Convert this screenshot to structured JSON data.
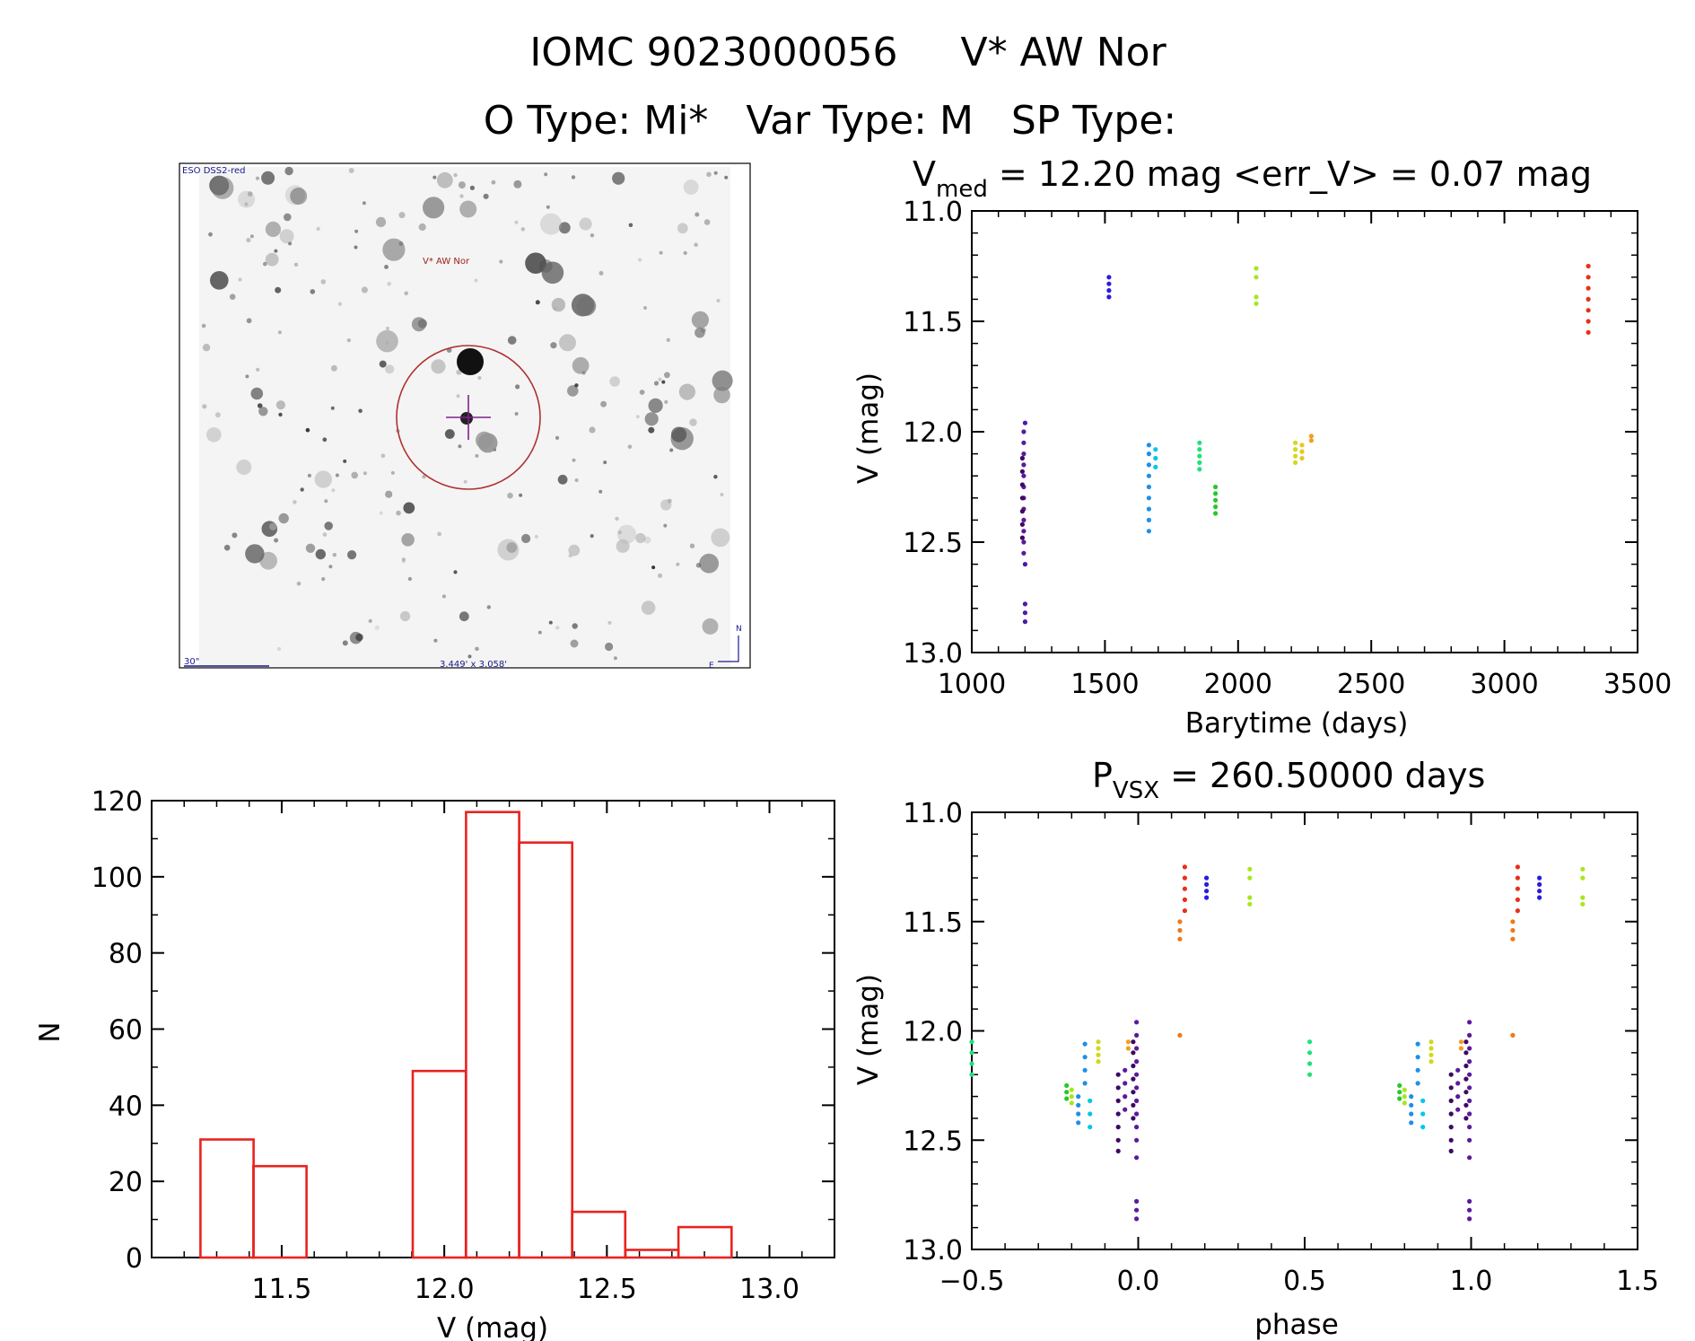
{
  "header": {
    "title": "IOMC 9023000056     V* AW Nor",
    "subtitle": "O Type: Mi*   Var Type: M   SP Type:"
  },
  "finder": {
    "survey_label": "ESO DSS2-red",
    "target_label": "V* AW Nor",
    "scale_label": "30\"",
    "size_label": "3.449' x 3.058'",
    "north": "N",
    "east": "E"
  },
  "colors": {
    "histogram": "#e8231f",
    "axes": "#000000",
    "marker": "#b03030",
    "cross": "#80208c"
  },
  "chart_data": [
    {
      "type": "scatter",
      "id": "lightcurve",
      "title_main": "V",
      "title_sub": "med",
      "title_rest": " = 12.20 mag <err_V> = 0.07 mag",
      "xlabel": "Barytime (days)",
      "ylabel": "V (mag)",
      "xlim": [
        1000,
        3500
      ],
      "ylim": [
        13.0,
        11.0
      ],
      "xticks": [
        "1000",
        "1500",
        "2000",
        "2500",
        "3000",
        "3500"
      ],
      "yticks": [
        "11.0",
        "11.5",
        "12.0",
        "12.5",
        "13.0"
      ],
      "groups": [
        {
          "x": 1195,
          "y": [
            12.0,
            12.05,
            12.1,
            12.15,
            12.2,
            12.25,
            12.3,
            12.35,
            12.4,
            12.45,
            12.5,
            12.55
          ],
          "color": "#5a1a9c"
        },
        {
          "x": 1190,
          "y": [
            12.12,
            12.18,
            12.24,
            12.3,
            12.36,
            12.42,
            12.48
          ],
          "color": "#3c0a62"
        },
        {
          "x": 1200,
          "y": [
            11.96,
            12.6,
            12.78,
            12.82,
            12.86
          ],
          "color": "#4b1aa8"
        },
        {
          "x": 1515,
          "y": [
            11.3,
            11.33,
            11.36,
            11.39
          ],
          "color": "#2a1ce0"
        },
        {
          "x": 1665,
          "y": [
            12.06,
            12.1,
            12.15,
            12.2,
            12.25,
            12.3,
            12.35,
            12.4,
            12.45
          ],
          "color": "#1e90e8"
        },
        {
          "x": 1690,
          "y": [
            12.08,
            12.12,
            12.16
          ],
          "color": "#00c8e8"
        },
        {
          "x": 1855,
          "y": [
            12.05,
            12.08,
            12.11,
            12.14,
            12.17
          ],
          "color": "#22e07a"
        },
        {
          "x": 1915,
          "y": [
            12.25,
            12.28,
            12.31,
            12.34,
            12.37
          ],
          "color": "#28c82a"
        },
        {
          "x": 2068,
          "y": [
            11.26,
            11.3,
            11.39,
            11.42
          ],
          "color": "#a6e81e"
        },
        {
          "x": 2215,
          "y": [
            12.05,
            12.08,
            12.11,
            12.14
          ],
          "color": "#d2d81e"
        },
        {
          "x": 2240,
          "y": [
            12.06,
            12.09,
            12.12
          ],
          "color": "#e8c81e"
        },
        {
          "x": 2275,
          "y": [
            12.02,
            12.04
          ],
          "color": "#f0a020"
        },
        {
          "x": 3315,
          "y": [
            11.25,
            11.3,
            11.35,
            11.4,
            11.45,
            11.5,
            11.55
          ],
          "color": "#e83018"
        }
      ]
    },
    {
      "type": "bar",
      "id": "histogram",
      "xlabel": "V (mag)",
      "ylabel": "N",
      "xlim": [
        11.1,
        13.2
      ],
      "ylim": [
        0,
        120
      ],
      "xticks": [
        "11.5",
        "12.0",
        "12.5",
        "13.0"
      ],
      "yticks": [
        "0",
        "20",
        "40",
        "60",
        "80",
        "100",
        "120"
      ],
      "bins": [
        11.25,
        11.413,
        11.577,
        11.74,
        11.903,
        12.067,
        12.23,
        12.393,
        12.557,
        12.72,
        12.883
      ],
      "bin_width": 0.1633,
      "values": [
        31,
        24,
        0,
        0,
        49,
        117,
        109,
        12,
        2,
        8,
        0
      ]
    },
    {
      "type": "scatter",
      "id": "phased",
      "title_main": "P",
      "title_sub": "VSX",
      "title_rest": " = 260.50000 days",
      "xlabel": "phase",
      "ylabel": "V (mag)",
      "xlim": [
        -0.5,
        1.5
      ],
      "ylim": [
        13.0,
        11.0
      ],
      "xticks": [
        "-0.5",
        "0.0",
        "0.5",
        "1.0",
        "1.5"
      ],
      "yticks": [
        "11.0",
        "11.5",
        "12.0",
        "12.5",
        "13.0"
      ],
      "groups": [
        {
          "x": -0.5,
          "y": [
            12.05,
            12.1,
            12.15,
            12.2
          ],
          "color": "#22e07a"
        },
        {
          "x": -0.215,
          "y": [
            12.25,
            12.28,
            12.31
          ],
          "color": "#28c82a"
        },
        {
          "x": -0.2,
          "y": [
            12.27,
            12.3,
            12.33
          ],
          "color": "#a6e81e"
        },
        {
          "x": -0.18,
          "y": [
            12.3,
            12.34,
            12.38,
            12.42
          ],
          "color": "#1e90e8"
        },
        {
          "x": -0.16,
          "y": [
            12.06,
            12.12,
            12.18,
            12.24
          ],
          "color": "#1e90e8"
        },
        {
          "x": -0.145,
          "y": [
            12.32,
            12.38,
            12.44
          ],
          "color": "#00c8e8"
        },
        {
          "x": -0.12,
          "y": [
            12.05,
            12.08,
            12.11,
            12.14
          ],
          "color": "#d2d81e"
        },
        {
          "x": -0.06,
          "y": [
            12.2,
            12.26,
            12.32,
            12.38,
            12.44,
            12.5,
            12.55
          ],
          "color": "#3c0a62"
        },
        {
          "x": -0.04,
          "y": [
            12.18,
            12.24,
            12.3,
            12.36
          ],
          "color": "#5a1a9c"
        },
        {
          "x": -0.015,
          "y": [
            12.05,
            12.1,
            12.16,
            12.22,
            12.28,
            12.34,
            12.4
          ],
          "color": "#3c0a62"
        },
        {
          "x": -0.005,
          "y": [
            11.96,
            12.02,
            12.08,
            12.14,
            12.2,
            12.26,
            12.32,
            12.38,
            12.44,
            12.5,
            12.58,
            12.78,
            12.82,
            12.86
          ],
          "color": "#5a1a9c"
        },
        {
          "x": -0.03,
          "y": [
            12.05,
            12.08
          ],
          "color": "#f0a020"
        },
        {
          "x": 0.125,
          "y": [
            11.5,
            11.54,
            11.58,
            12.02
          ],
          "color": "#f07818"
        },
        {
          "x": 0.14,
          "y": [
            11.25,
            11.3,
            11.35,
            11.4,
            11.45
          ],
          "color": "#e83018"
        },
        {
          "x": 0.205,
          "y": [
            11.3,
            11.33,
            11.36,
            11.39
          ],
          "color": "#2a1ce0"
        },
        {
          "x": 0.335,
          "y": [
            11.26,
            11.3,
            11.39,
            11.42
          ],
          "color": "#a6e81e"
        },
        {
          "x": 0.515,
          "y": [
            12.05,
            12.1,
            12.15,
            12.2
          ],
          "color": "#22e07a"
        },
        {
          "x": 0.785,
          "y": [
            12.25,
            12.28,
            12.31
          ],
          "color": "#28c82a"
        },
        {
          "x": 0.8,
          "y": [
            12.27,
            12.3,
            12.33
          ],
          "color": "#a6e81e"
        },
        {
          "x": 0.82,
          "y": [
            12.3,
            12.34,
            12.38,
            12.42
          ],
          "color": "#1e90e8"
        },
        {
          "x": 0.84,
          "y": [
            12.06,
            12.12,
            12.18,
            12.24
          ],
          "color": "#1e90e8"
        },
        {
          "x": 0.855,
          "y": [
            12.32,
            12.38,
            12.44
          ],
          "color": "#00c8e8"
        },
        {
          "x": 0.88,
          "y": [
            12.05,
            12.08,
            12.11,
            12.14
          ],
          "color": "#d2d81e"
        },
        {
          "x": 0.94,
          "y": [
            12.2,
            12.26,
            12.32,
            12.38,
            12.44,
            12.5,
            12.55
          ],
          "color": "#3c0a62"
        },
        {
          "x": 0.96,
          "y": [
            12.18,
            12.24,
            12.3,
            12.36
          ],
          "color": "#5a1a9c"
        },
        {
          "x": 0.985,
          "y": [
            12.05,
            12.1,
            12.16,
            12.22,
            12.28,
            12.34,
            12.4
          ],
          "color": "#3c0a62"
        },
        {
          "x": 0.995,
          "y": [
            11.96,
            12.02,
            12.08,
            12.14,
            12.2,
            12.26,
            12.32,
            12.38,
            12.44,
            12.5,
            12.58,
            12.78,
            12.82,
            12.86
          ],
          "color": "#5a1a9c"
        },
        {
          "x": 0.97,
          "y": [
            12.05,
            12.08
          ],
          "color": "#f0a020"
        },
        {
          "x": 1.125,
          "y": [
            11.5,
            11.54,
            11.58,
            12.02
          ],
          "color": "#f07818"
        },
        {
          "x": 1.14,
          "y": [
            11.25,
            11.3,
            11.35,
            11.4,
            11.45
          ],
          "color": "#e83018"
        },
        {
          "x": 1.205,
          "y": [
            11.3,
            11.33,
            11.36,
            11.39
          ],
          "color": "#2a1ce0"
        },
        {
          "x": 1.335,
          "y": [
            11.26,
            11.3,
            11.39,
            11.42
          ],
          "color": "#a6e81e"
        }
      ]
    }
  ]
}
